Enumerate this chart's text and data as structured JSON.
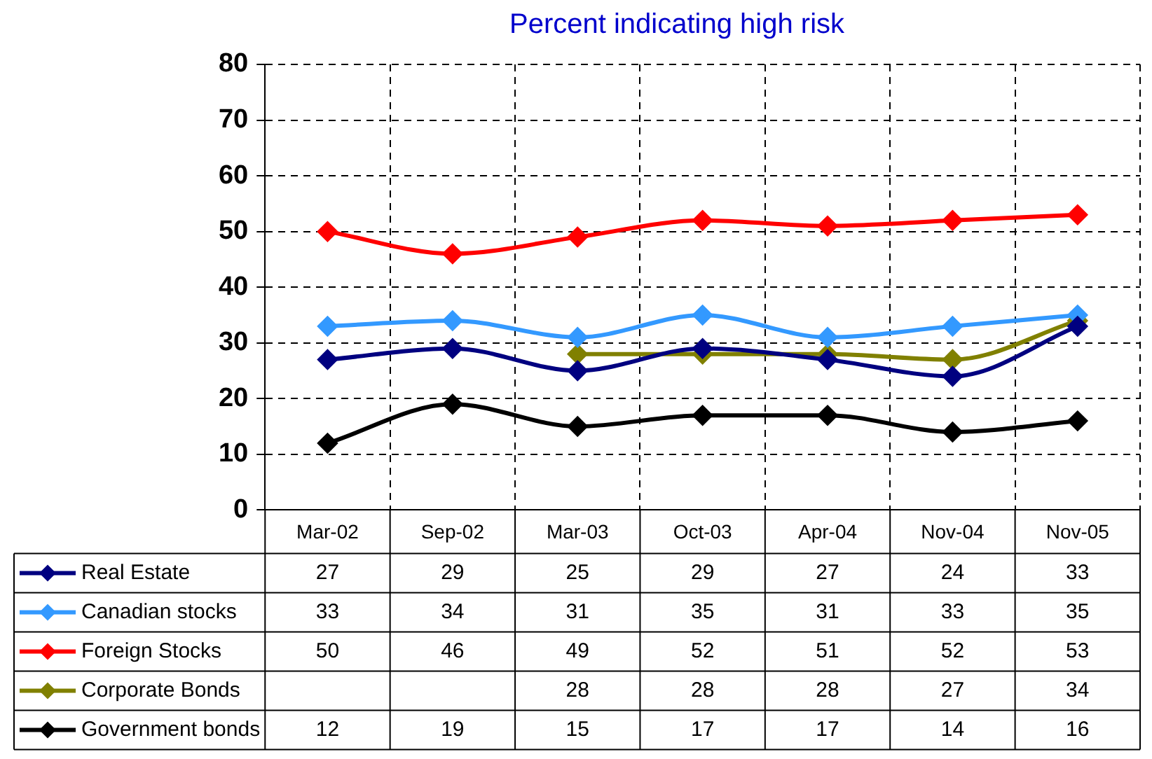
{
  "chart_data": {
    "type": "line",
    "title": "Percent indicating high risk",
    "categories": [
      "Mar-02",
      "Sep-02",
      "Mar-03",
      "Oct-03",
      "Apr-04",
      "Nov-04",
      "Nov-05"
    ],
    "series": [
      {
        "name": "Real Estate",
        "color": "#000080",
        "values": [
          27,
          29,
          25,
          29,
          27,
          24,
          33
        ]
      },
      {
        "name": "Canadian stocks",
        "color": "#3399ff",
        "values": [
          33,
          34,
          31,
          35,
          31,
          33,
          35
        ]
      },
      {
        "name": "Foreign Stocks",
        "color": "#ff0000",
        "values": [
          50,
          46,
          49,
          52,
          51,
          52,
          53
        ]
      },
      {
        "name": "Corporate Bonds",
        "color": "#808000",
        "values": [
          null,
          null,
          28,
          28,
          28,
          27,
          34
        ]
      },
      {
        "name": "Government bonds",
        "color": "#000000",
        "values": [
          12,
          19,
          15,
          17,
          17,
          14,
          16
        ]
      }
    ],
    "ylim": [
      0,
      80
    ],
    "yticks": [
      0,
      10,
      20,
      30,
      40,
      50,
      60,
      70,
      80
    ],
    "grid": true,
    "legend": "bottom left",
    "data_labels": true,
    "marker": "diamond",
    "line_style": "solid"
  }
}
